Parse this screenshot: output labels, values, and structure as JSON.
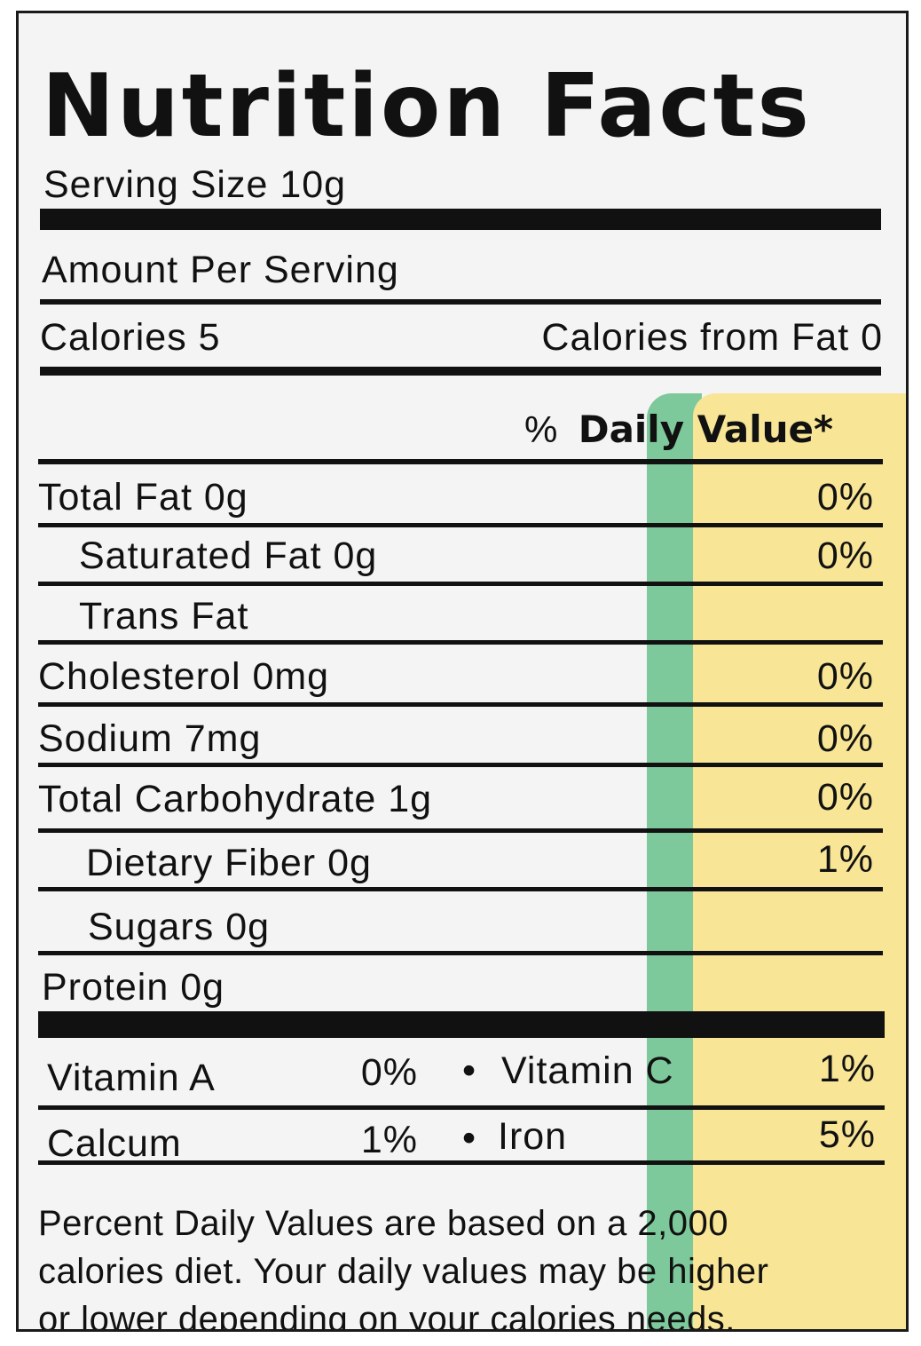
{
  "title": "Nutrition Facts",
  "serving_size": "Serving Size 10g",
  "amount_per_serving": "Amount Per Serving",
  "calories": "Calories 5",
  "calories_from_fat": "Calories from Fat 0",
  "daily_value_prefix": "%",
  "daily_value_label": "Daily Value*",
  "nutrients": [
    {
      "name": "Total Fat 0g",
      "percent": "0%"
    },
    {
      "name": "Saturated Fat 0g",
      "percent": "0%"
    },
    {
      "name": "Trans Fat",
      "percent": ""
    },
    {
      "name": "Cholesterol 0mg",
      "percent": "0%"
    },
    {
      "name": "Sodium 7mg",
      "percent": "0%"
    },
    {
      "name": "Total Carbohydrate 1g",
      "percent": "0%"
    },
    {
      "name": "Dietary Fiber 0g",
      "percent": "1%"
    },
    {
      "name": "Sugars 0g",
      "percent": ""
    },
    {
      "name": "Protein 0g",
      "percent": ""
    }
  ],
  "vitamins": [
    {
      "left_name": "Vitamin A",
      "left_value": "0%",
      "right_name": "Vitamin C",
      "right_value": "1%"
    },
    {
      "left_name": "Calcum",
      "left_value": "1%",
      "right_name": "Iron",
      "right_value": "5%"
    }
  ],
  "bullet": "•",
  "footnote_lines": [
    "Percent Daily Values are based on a 2,000",
    "calories diet. Your daily values may be higher",
    "or lower depending on your calories needs."
  ],
  "colors": {
    "green_band": "#7ec99b",
    "yellow_band": "#f8e596"
  }
}
